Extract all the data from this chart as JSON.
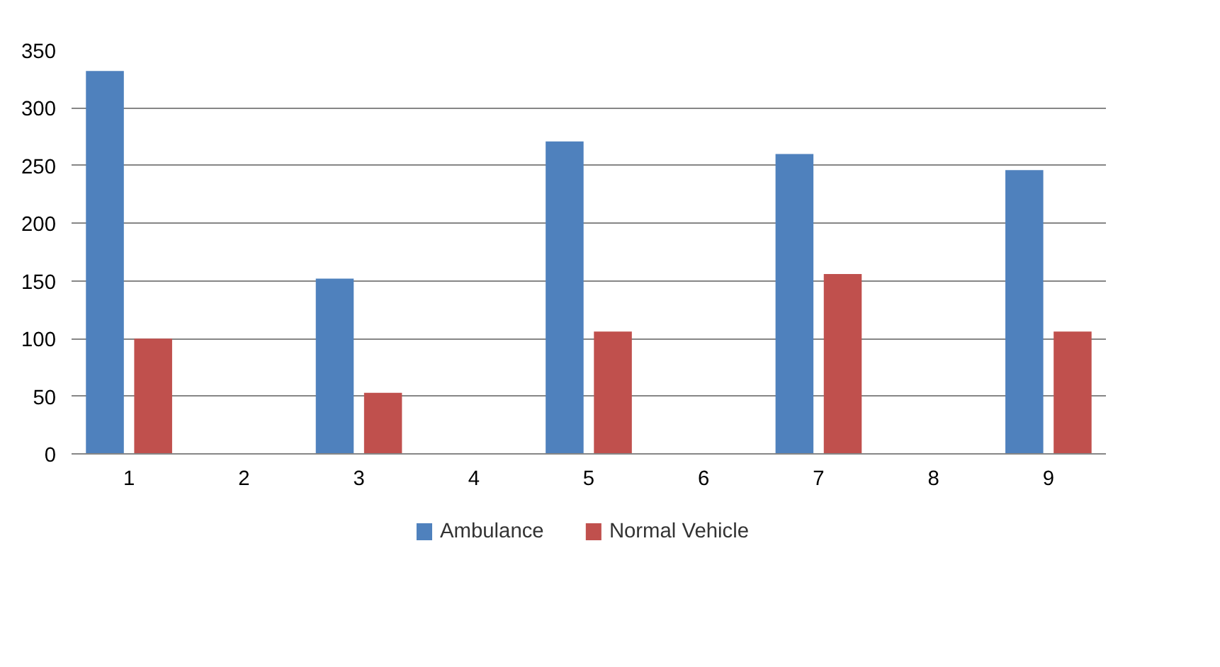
{
  "chart_data": {
    "type": "bar",
    "categories": [
      "1",
      "2",
      "3",
      "4",
      "5",
      "6",
      "7",
      "8",
      "9"
    ],
    "series": [
      {
        "name": "Ambulance",
        "color": "#4f81bd",
        "values": [
          332,
          null,
          152,
          null,
          271,
          null,
          260,
          null,
          246
        ]
      },
      {
        "name": "Normal Vehicle",
        "color": "#c0504d",
        "values": [
          100,
          null,
          53,
          null,
          106,
          null,
          156,
          null,
          106
        ]
      }
    ],
    "ylim": [
      0,
      350
    ],
    "yticks": [
      0,
      50,
      100,
      150,
      200,
      250,
      300,
      350
    ],
    "grid": "y",
    "legend": "bottom"
  }
}
